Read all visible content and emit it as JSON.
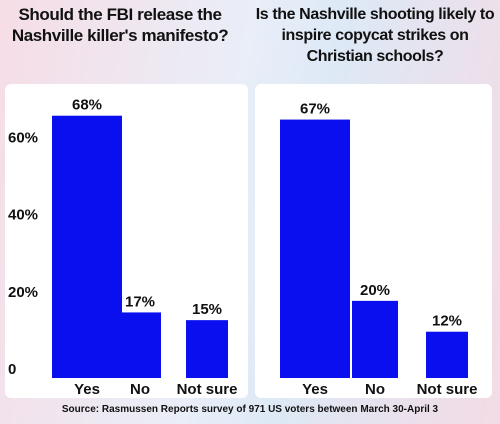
{
  "chart_data": [
    {
      "type": "bar",
      "title": "Should the FBI release the Nashville killer's manifesto?",
      "categories": [
        "Yes",
        "No",
        "Not sure"
      ],
      "values": [
        68,
        17,
        15
      ],
      "value_labels": [
        "68%",
        "17%",
        "15%"
      ],
      "color": "#0a0ff0",
      "ylim": [
        0,
        70
      ],
      "yticks": [
        0,
        {
          "value": 20,
          "label": "20%"
        },
        {
          "value": 40,
          "label": "40%"
        },
        {
          "value": 60,
          "label": "60%"
        }
      ]
    },
    {
      "type": "bar",
      "title": "Is the Nashville shooting likely to inspire copycat strikes on Christian schools?",
      "categories": [
        "Yes",
        "No",
        "Not sure"
      ],
      "values": [
        67,
        20,
        12
      ],
      "value_labels": [
        "67%",
        "20%",
        "12%"
      ],
      "color": "#0a0ff0",
      "ylim": [
        0,
        70
      ]
    }
  ],
  "source": "Source: Rasmussen Reports survey of 971 US voters between March 30-April 3"
}
